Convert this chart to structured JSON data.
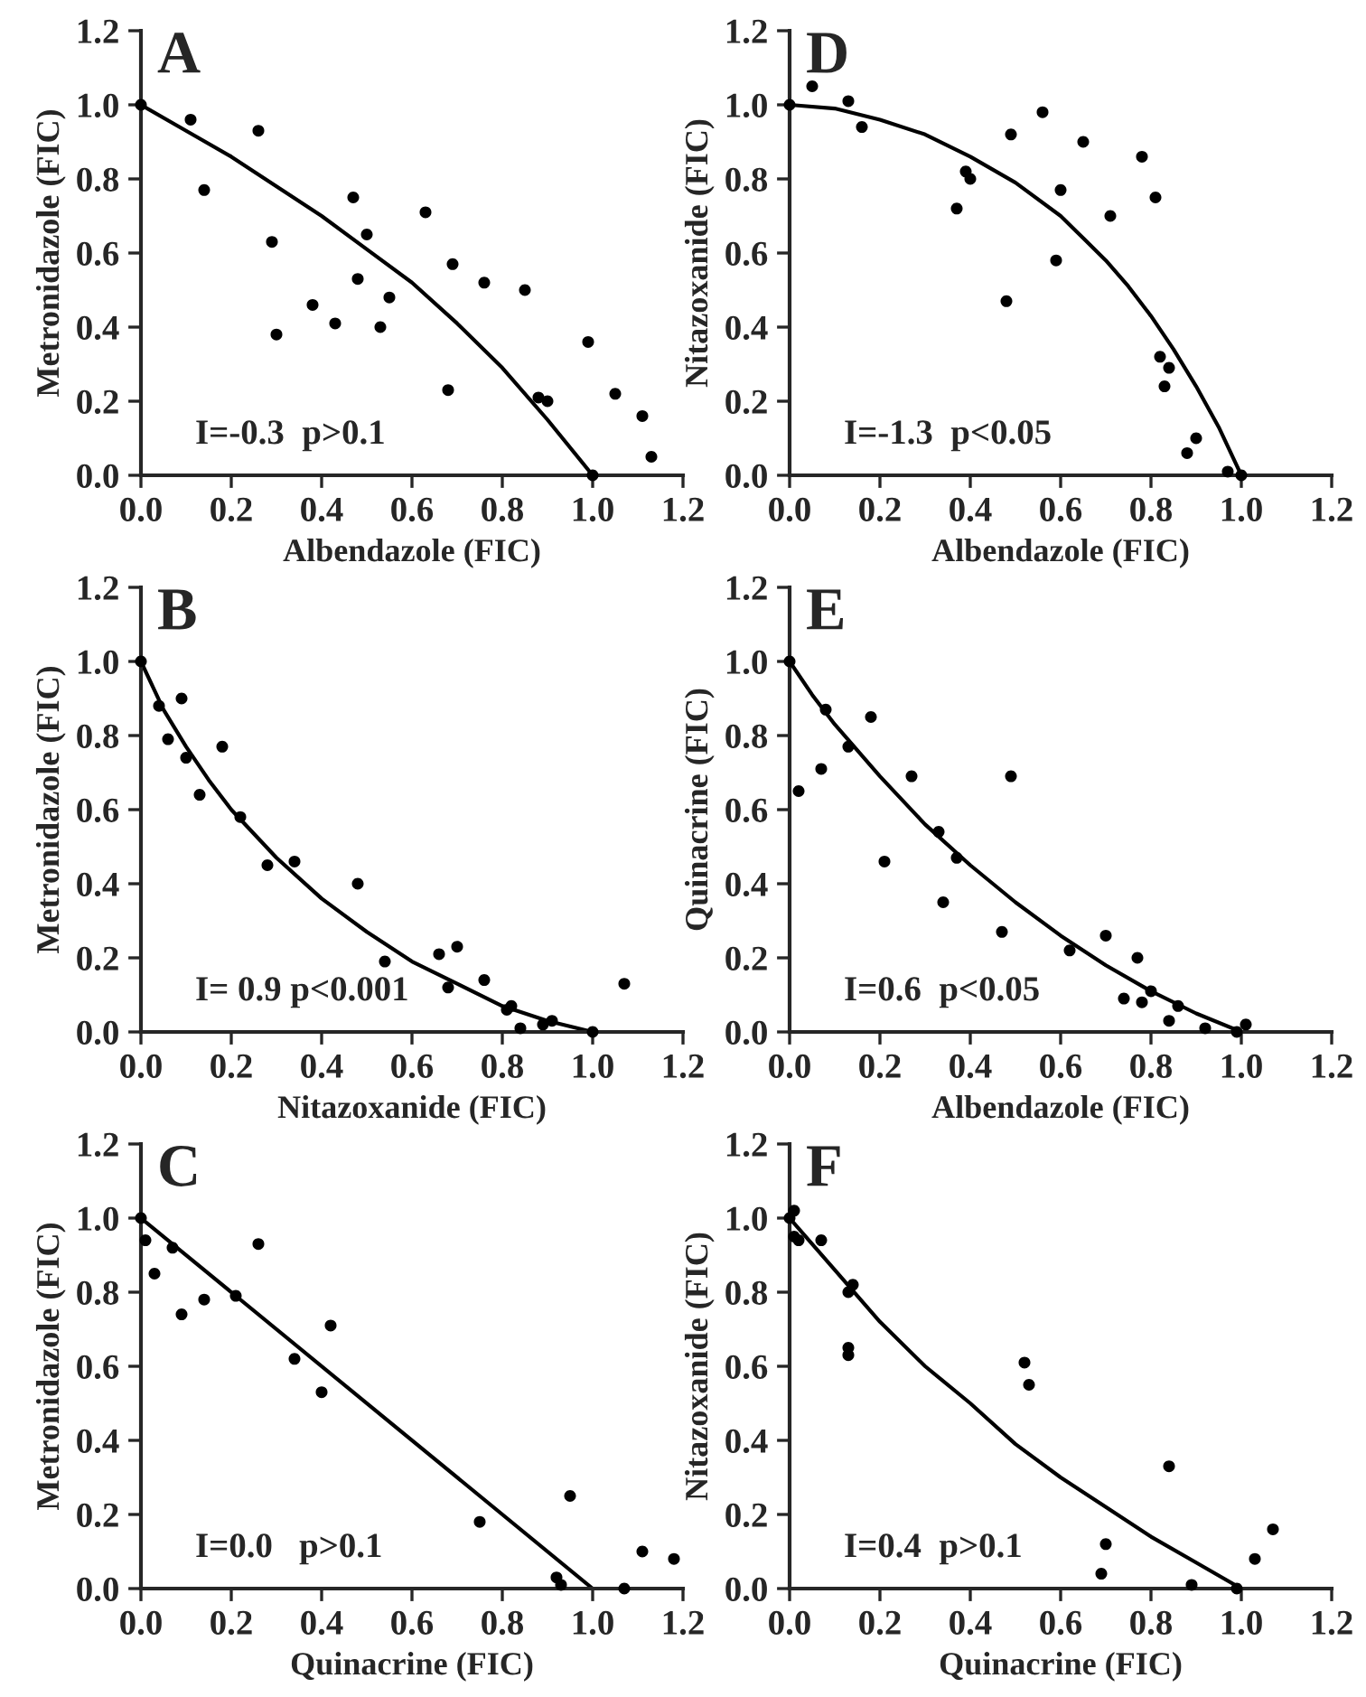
{
  "chart_data": [
    {
      "type": "scatter",
      "xlabel": "Albendazole (FIC)",
      "ylabel": "Metronidazole (FIC)",
      "annotations": [
        "A",
        "I=-0.3  p>0.1"
      ],
      "xlim": [
        0,
        1.2
      ],
      "ylim": [
        0,
        1.2
      ],
      "xticks": [
        "0.0",
        0.2,
        0.4,
        0.6,
        0.8,
        "1.0",
        1.2
      ],
      "yticks": [
        "0.0",
        0.2,
        0.4,
        0.6,
        0.8,
        "1.0",
        1.2
      ],
      "grid": false,
      "legend": false,
      "series": [
        {
          "marker": "circle",
          "color": "#000000",
          "x": [
            0,
            0.11,
            0.14,
            0.26,
            0.29,
            0.3,
            0.38,
            0.43,
            0.47,
            0.48,
            0.5,
            0.53,
            0.55,
            0.63,
            0.68,
            0.69,
            0.76,
            0.85,
            0.88,
            0.9,
            0.99,
            1.0,
            1.05,
            1.11,
            1.13
          ],
          "values": [
            1,
            0.96,
            0.77,
            0.93,
            0.63,
            0.38,
            0.46,
            0.41,
            0.75,
            0.53,
            0.65,
            0.4,
            0.48,
            0.71,
            0.23,
            0.57,
            0.52,
            0.5,
            0.21,
            0.2,
            0.36,
            0,
            0.22,
            0.16,
            0.05
          ]
        },
        {
          "type": "line",
          "marker": "none",
          "color": "#000000",
          "line_style": "solid",
          "x": [
            0,
            0.1,
            0.2,
            0.3,
            0.4,
            0.5,
            0.6,
            0.7,
            0.8,
            0.9,
            1.0
          ],
          "values": [
            1,
            0.93,
            0.86,
            0.78,
            0.7,
            0.61,
            0.52,
            0.41,
            0.29,
            0.15,
            0
          ]
        }
      ]
    },
    {
      "type": "scatter",
      "xlabel": "Albendazole (FIC)",
      "ylabel": "Nitazoxanide (FIC)",
      "annotations": [
        "D",
        "I=-1.3  p<0.05"
      ],
      "xlim": [
        0,
        1.2
      ],
      "ylim": [
        0,
        1.2
      ],
      "xticks": [
        "0.0",
        0.2,
        0.4,
        0.6,
        0.8,
        "1.0",
        1.2
      ],
      "yticks": [
        "0.0",
        0.2,
        0.4,
        0.6,
        0.8,
        "1.0",
        1.2
      ],
      "grid": false,
      "legend": false,
      "series": [
        {
          "marker": "circle",
          "color": "#000000",
          "x": [
            0,
            0.05,
            0.13,
            0.16,
            0.37,
            0.39,
            0.4,
            0.48,
            0.49,
            0.56,
            0.59,
            0.6,
            0.65,
            0.71,
            0.78,
            0.81,
            0.82,
            0.83,
            0.84,
            0.88,
            0.9,
            0.97,
            1.0
          ],
          "values": [
            1,
            1.05,
            1.01,
            0.94,
            0.72,
            0.82,
            0.8,
            0.47,
            0.92,
            0.98,
            0.58,
            0.77,
            0.9,
            0.7,
            0.86,
            0.75,
            0.32,
            0.24,
            0.29,
            0.06,
            0.1,
            0.01,
            0
          ]
        },
        {
          "type": "line",
          "marker": "none",
          "color": "#000000",
          "line_style": "solid",
          "x": [
            0,
            0.1,
            0.2,
            0.3,
            0.4,
            0.5,
            0.6,
            0.65,
            0.7,
            0.75,
            0.8,
            0.85,
            0.9,
            0.95,
            1.0
          ],
          "values": [
            1,
            0.99,
            0.96,
            0.92,
            0.86,
            0.79,
            0.7,
            0.64,
            0.58,
            0.51,
            0.43,
            0.34,
            0.24,
            0.13,
            0
          ]
        }
      ]
    },
    {
      "type": "scatter",
      "xlabel": "Nitazoxanide (FIC)",
      "ylabel": "Metronidazole (FIC)",
      "annotations": [
        "B",
        "I= 0.9 p<0.001"
      ],
      "xlim": [
        0,
        1.2
      ],
      "ylim": [
        0,
        1.2
      ],
      "xticks": [
        "0.0",
        0.2,
        0.4,
        0.6,
        0.8,
        "1.0",
        1.2
      ],
      "yticks": [
        "0.0",
        0.2,
        0.4,
        0.6,
        0.8,
        "1.0",
        1.2
      ],
      "grid": false,
      "legend": false,
      "series": [
        {
          "marker": "circle",
          "color": "#000000",
          "x": [
            0,
            0.04,
            0.06,
            0.09,
            0.1,
            0.13,
            0.18,
            0.22,
            0.28,
            0.34,
            0.48,
            0.54,
            0.66,
            0.68,
            0.7,
            0.76,
            0.81,
            0.82,
            0.84,
            0.89,
            0.91,
            1.0,
            1.07
          ],
          "values": [
            1,
            0.88,
            0.79,
            0.9,
            0.74,
            0.64,
            0.77,
            0.58,
            0.45,
            0.46,
            0.4,
            0.19,
            0.21,
            0.12,
            0.23,
            0.14,
            0.06,
            0.07,
            0.01,
            0.02,
            0.03,
            0,
            0.13
          ]
        },
        {
          "type": "line",
          "marker": "none",
          "color": "#000000",
          "line_style": "solid",
          "x": [
            0,
            0.05,
            0.1,
            0.15,
            0.2,
            0.3,
            0.4,
            0.5,
            0.6,
            0.7,
            0.8,
            0.9,
            1.0
          ],
          "values": [
            1,
            0.87,
            0.77,
            0.68,
            0.6,
            0.47,
            0.36,
            0.27,
            0.19,
            0.13,
            0.07,
            0.03,
            0
          ]
        }
      ]
    },
    {
      "type": "scatter",
      "xlabel": "Albendazole (FIC)",
      "ylabel": "Quinacrine (FIC)",
      "annotations": [
        "E",
        "I=0.6  p<0.05"
      ],
      "xlim": [
        0,
        1.2
      ],
      "ylim": [
        0,
        1.2
      ],
      "xticks": [
        "0.0",
        0.2,
        0.4,
        0.6,
        0.8,
        "1.0",
        1.2
      ],
      "yticks": [
        "0.0",
        0.2,
        0.4,
        0.6,
        0.8,
        "1.0",
        1.2
      ],
      "grid": false,
      "legend": false,
      "series": [
        {
          "marker": "circle",
          "color": "#000000",
          "x": [
            0,
            0.02,
            0.07,
            0.08,
            0.13,
            0.18,
            0.21,
            0.27,
            0.33,
            0.34,
            0.37,
            0.47,
            0.49,
            0.62,
            0.7,
            0.74,
            0.77,
            0.78,
            0.8,
            0.84,
            0.86,
            0.92,
            0.99,
            1.01
          ],
          "values": [
            1,
            0.65,
            0.71,
            0.87,
            0.77,
            0.85,
            0.46,
            0.69,
            0.54,
            0.35,
            0.47,
            0.27,
            0.69,
            0.22,
            0.26,
            0.09,
            0.2,
            0.08,
            0.11,
            0.03,
            0.07,
            0.01,
            0,
            0.02
          ]
        },
        {
          "type": "line",
          "marker": "none",
          "color": "#000000",
          "line_style": "solid",
          "x": [
            0,
            0.05,
            0.1,
            0.15,
            0.2,
            0.3,
            0.4,
            0.5,
            0.6,
            0.7,
            0.8,
            0.9,
            1.0
          ],
          "values": [
            1,
            0.91,
            0.83,
            0.76,
            0.69,
            0.56,
            0.45,
            0.35,
            0.26,
            0.18,
            0.11,
            0.05,
            0
          ]
        }
      ]
    },
    {
      "type": "scatter",
      "xlabel": "Quinacrine (FIC)",
      "ylabel": "Metronidazole (FIC)",
      "annotations": [
        "C",
        "I=0.0   p>0.1"
      ],
      "xlim": [
        0,
        1.2
      ],
      "ylim": [
        0,
        1.2
      ],
      "xticks": [
        "0.0",
        0.2,
        0.4,
        0.6,
        0.8,
        "1.0",
        1.2
      ],
      "yticks": [
        "0.0",
        0.2,
        0.4,
        0.6,
        0.8,
        "1.0",
        1.2
      ],
      "grid": false,
      "legend": false,
      "series": [
        {
          "marker": "circle",
          "color": "#000000",
          "x": [
            0,
            0.01,
            0.03,
            0.07,
            0.09,
            0.14,
            0.21,
            0.26,
            0.34,
            0.4,
            0.42,
            0.75,
            0.92,
            0.93,
            0.95,
            1.07,
            1.11,
            1.18
          ],
          "values": [
            1,
            0.94,
            0.85,
            0.92,
            0.74,
            0.78,
            0.79,
            0.93,
            0.62,
            0.53,
            0.71,
            0.18,
            0.03,
            0.01,
            0.25,
            0,
            0.1,
            0.08
          ]
        },
        {
          "type": "line",
          "marker": "none",
          "color": "#000000",
          "line_style": "solid",
          "x": [
            0,
            1.0
          ],
          "values": [
            1,
            0
          ]
        }
      ]
    },
    {
      "type": "scatter",
      "xlabel": "Quinacrine (FIC)",
      "ylabel": "Nitazoxanide (FIC)",
      "annotations": [
        "F",
        "I=0.4  p>0.1"
      ],
      "xlim": [
        0,
        1.2
      ],
      "ylim": [
        0,
        1.2
      ],
      "xticks": [
        "0.0",
        0.2,
        0.4,
        0.6,
        0.8,
        "1.0",
        1.2
      ],
      "yticks": [
        "0.0",
        0.2,
        0.4,
        0.6,
        0.8,
        "1.0",
        1.2
      ],
      "grid": false,
      "legend": false,
      "series": [
        {
          "marker": "circle",
          "color": "#000000",
          "x": [
            0,
            0.01,
            0.01,
            0.02,
            0.07,
            0.13,
            0.14,
            0.13,
            0.13,
            0.52,
            0.53,
            0.69,
            0.7,
            0.84,
            0.89,
            0.99,
            1.03,
            1.07
          ],
          "values": [
            1,
            1.02,
            0.95,
            0.94,
            0.94,
            0.8,
            0.82,
            0.63,
            0.65,
            0.61,
            0.55,
            0.04,
            0.12,
            0.33,
            0.01,
            0,
            0.08,
            0.16
          ]
        },
        {
          "type": "line",
          "marker": "none",
          "color": "#000000",
          "line_style": "solid",
          "x": [
            0,
            0.1,
            0.2,
            0.3,
            0.4,
            0.5,
            0.6,
            0.7,
            0.8,
            0.9,
            1.0
          ],
          "values": [
            1,
            0.86,
            0.72,
            0.6,
            0.5,
            0.39,
            0.3,
            0.22,
            0.14,
            0.07,
            0
          ]
        }
      ]
    }
  ]
}
